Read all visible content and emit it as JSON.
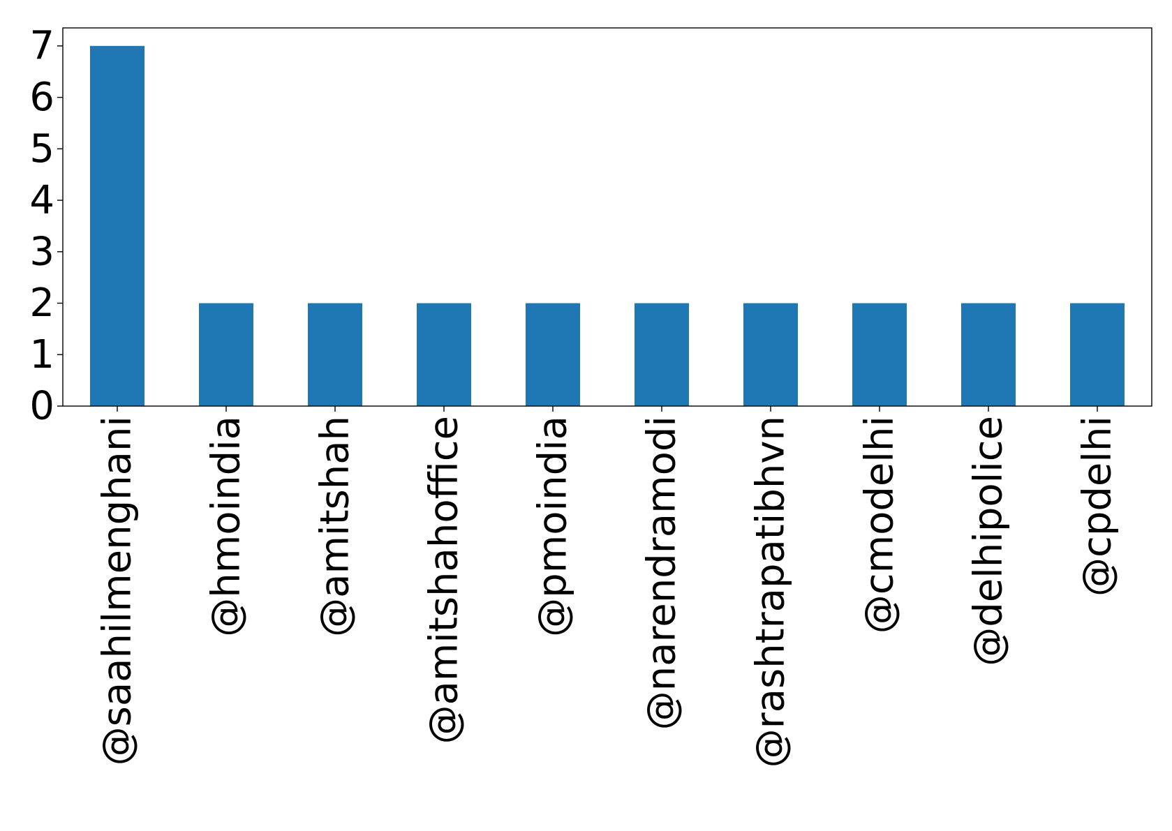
{
  "chart_data": {
    "type": "bar",
    "title": "",
    "xlabel": "",
    "ylabel": "",
    "categories": [
      "@saahilmenghani",
      "@hmoindia",
      "@amitshah",
      "@amitshahoffice",
      "@pmoindia",
      "@narendramodi",
      "@rashtrapatibhvn",
      "@cmodelhi",
      "@delhipolice",
      "@cpdelhi"
    ],
    "values": [
      7,
      2,
      2,
      2,
      2,
      2,
      2,
      2,
      2,
      2
    ],
    "ylim": [
      0,
      7.35
    ],
    "yticks": [
      0,
      1,
      2,
      3,
      4,
      5,
      6,
      7
    ],
    "grid": false,
    "legend": "none",
    "colors": {
      "bar": "#1f77b4",
      "axis": "#000000",
      "background": "#ffffff"
    }
  }
}
